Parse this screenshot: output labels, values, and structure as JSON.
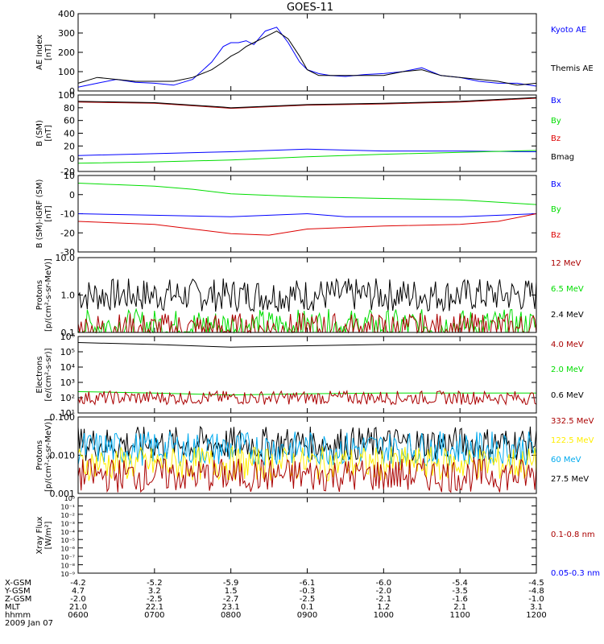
{
  "title": "GOES-11",
  "colors": {
    "black": "#000000",
    "blue": "#0000ff",
    "green": "#00dd00",
    "darkred": "#aa0000",
    "red": "#dd0000",
    "yellow": "#ffee00",
    "cyan": "#00aaee"
  },
  "chart_data": [
    {
      "type": "line",
      "ylabel": "AE Index\n[nT]",
      "ylim": [
        0,
        400
      ],
      "yscale": "linear",
      "yticks": [
        "0",
        "100",
        "200",
        "300",
        "400"
      ],
      "legend": [
        {
          "name": "Kyoto AE",
          "color": "blue"
        },
        {
          "name": "Themis AE",
          "color": "black"
        }
      ],
      "series": [
        {
          "name": "Kyoto AE",
          "color": "blue",
          "x": [
            6.0,
            6.25,
            6.5,
            6.75,
            7.0,
            7.25,
            7.5,
            7.75,
            7.9,
            8.0,
            8.1,
            8.2,
            8.3,
            8.45,
            8.6,
            8.75,
            8.9,
            9.0,
            9.15,
            9.3,
            9.5,
            9.75,
            10.0,
            10.25,
            10.5,
            10.75,
            11.0,
            11.25,
            11.5,
            11.75,
            12.0
          ],
          "y": [
            20,
            40,
            60,
            45,
            40,
            30,
            60,
            150,
            230,
            250,
            250,
            260,
            240,
            310,
            330,
            250,
            150,
            110,
            90,
            80,
            75,
            85,
            90,
            100,
            120,
            80,
            70,
            50,
            40,
            40,
            25
          ]
        },
        {
          "name": "Themis AE",
          "color": "black",
          "x": [
            6.0,
            6.25,
            6.5,
            6.75,
            7.0,
            7.25,
            7.5,
            7.75,
            7.9,
            8.0,
            8.1,
            8.2,
            8.3,
            8.45,
            8.6,
            8.75,
            8.9,
            9.0,
            9.15,
            9.3,
            9.5,
            9.75,
            10.0,
            10.25,
            10.5,
            10.75,
            11.0,
            11.25,
            11.5,
            11.75,
            12.0
          ],
          "y": [
            40,
            70,
            60,
            50,
            50,
            50,
            70,
            110,
            150,
            180,
            200,
            230,
            250,
            280,
            310,
            270,
            180,
            110,
            80,
            80,
            80,
            80,
            80,
            100,
            110,
            80,
            70,
            60,
            50,
            30,
            40
          ]
        }
      ]
    },
    {
      "type": "line",
      "ylabel": "B (SM)\n[nT]",
      "ylim": [
        -20,
        100
      ],
      "yscale": "linear",
      "yticks": [
        "-20",
        "0",
        "20",
        "40",
        "60",
        "80",
        "100"
      ],
      "legend": [
        {
          "name": "Bx",
          "color": "blue"
        },
        {
          "name": "By",
          "color": "green"
        },
        {
          "name": "Bz",
          "color": "red"
        },
        {
          "name": "Bmag",
          "color": "black"
        }
      ],
      "series": [
        {
          "name": "Bx",
          "color": "blue",
          "x": [
            6,
            7,
            8,
            9,
            10,
            11,
            12
          ],
          "y": [
            5,
            8,
            11,
            15,
            12,
            12,
            11
          ]
        },
        {
          "name": "By",
          "color": "green",
          "x": [
            6,
            7,
            8,
            9,
            10,
            11,
            12
          ],
          "y": [
            -7,
            -5,
            -2,
            3,
            7,
            10,
            13
          ]
        },
        {
          "name": "Bz",
          "color": "darkred",
          "x": [
            6,
            7,
            7.9,
            8,
            9,
            10,
            11,
            12
          ],
          "y": [
            89,
            87,
            80,
            79,
            84,
            86,
            89,
            95
          ]
        },
        {
          "name": "Bmag",
          "color": "black",
          "x": [
            6,
            7,
            7.9,
            8,
            9,
            10,
            11,
            12
          ],
          "y": [
            90,
            88,
            81,
            80,
            85,
            87,
            90,
            96
          ]
        }
      ]
    },
    {
      "type": "line",
      "ylabel": "B (SM)-IGRF (SM)\n[nT]",
      "ylim": [
        -35,
        15
      ],
      "yscale": "linear",
      "yticks": [
        "-30",
        "-20",
        "-10",
        "0",
        "10"
      ],
      "legend": [
        {
          "name": "Bx",
          "color": "blue"
        },
        {
          "name": "By",
          "color": "green"
        },
        {
          "name": "Bz",
          "color": "red"
        }
      ],
      "series": [
        {
          "name": "Bx",
          "color": "blue",
          "x": [
            6,
            7,
            8,
            8.5,
            9,
            9.5,
            10,
            11,
            12
          ],
          "y": [
            -10,
            -11,
            -12,
            -11,
            -10,
            -12,
            -12,
            -12,
            -10
          ]
        },
        {
          "name": "By",
          "color": "green",
          "x": [
            6,
            6.5,
            7,
            7.5,
            8,
            9,
            10,
            11,
            12
          ],
          "y": [
            10,
            9,
            8,
            6,
            3,
            1,
            0,
            -1,
            -4
          ]
        },
        {
          "name": "Bz",
          "color": "red",
          "x": [
            6,
            7,
            7.5,
            8,
            8.5,
            9,
            10,
            11,
            11.5,
            12
          ],
          "y": [
            -15,
            -17,
            -20,
            -23,
            -24,
            -20,
            -18,
            -17,
            -15,
            -10
          ]
        }
      ]
    },
    {
      "type": "line",
      "ylabel": "Protons\n[p/(cm²-s-sr-MeV)]",
      "ylim": [
        0.1,
        10.0
      ],
      "yscale": "log",
      "yticks": [
        "0.1",
        "1.0",
        "10.0"
      ],
      "legend": [
        {
          "name": "12 MeV",
          "color": "darkred"
        },
        {
          "name": "6.5 MeV",
          "color": "green"
        },
        {
          "name": "2.4 MeV",
          "color": "black"
        }
      ],
      "series": [
        {
          "name": "2.4 MeV",
          "color": "black",
          "noisy": true,
          "x": [
            6,
            12
          ],
          "y": [
            1.0,
            1.5
          ]
        },
        {
          "name": "6.5 MeV",
          "color": "green",
          "noisy": true,
          "x": [
            6,
            12
          ],
          "y": [
            0.15,
            0.15
          ]
        },
        {
          "name": "12 MeV",
          "color": "darkred",
          "noisy": true,
          "x": [
            6,
            12
          ],
          "y": [
            0.12,
            0.12
          ]
        }
      ]
    },
    {
      "type": "line",
      "ylabel": "Electrons\n[e/(cm²-s-sr)]",
      "ylim": [
        10,
        1000000
      ],
      "yscale": "log",
      "yticks": [
        "10¹",
        "10²",
        "10³",
        "10⁴",
        "10⁵",
        "10⁶"
      ],
      "legend": [
        {
          "name": "4.0 MeV",
          "color": "darkred"
        },
        {
          "name": "2.0 MeV",
          "color": "green"
        },
        {
          "name": "0.6 MeV",
          "color": "black"
        }
      ],
      "series": [
        {
          "name": "0.6 MeV",
          "color": "black",
          "x": [
            6,
            7,
            8,
            9,
            10,
            11,
            12
          ],
          "y": [
            400000,
            300000,
            200000,
            250000,
            300000,
            300000,
            300000
          ]
        },
        {
          "name": "2.0 MeV",
          "color": "green",
          "x": [
            6,
            7,
            8,
            9,
            10,
            11,
            12
          ],
          "y": [
            250,
            200,
            150,
            180,
            200,
            200,
            200
          ]
        },
        {
          "name": "4.0 MeV",
          "color": "darkred",
          "noisy": true,
          "x": [
            6,
            12
          ],
          "y": [
            100,
            100
          ]
        }
      ]
    },
    {
      "type": "line",
      "ylabel": "Protons\n[p/(cm²-s-sr-MeV)]",
      "ylim": [
        0.001,
        0.1
      ],
      "yscale": "log",
      "yticks": [
        "0.001",
        "0.010",
        "0.100"
      ],
      "legend": [
        {
          "name": "332.5 MeV",
          "color": "darkred"
        },
        {
          "name": "122.5 MeV",
          "color": "yellow"
        },
        {
          "name": "60 MeV",
          "color": "cyan"
        },
        {
          "name": "27.5 MeV",
          "color": "black"
        }
      ],
      "series": [
        {
          "name": "27.5 MeV",
          "color": "black",
          "noisy": true,
          "x": [
            6,
            12
          ],
          "y": [
            0.02,
            0.02
          ]
        },
        {
          "name": "60 MeV",
          "color": "cyan",
          "noisy": true,
          "x": [
            6,
            12
          ],
          "y": [
            0.015,
            0.015
          ]
        },
        {
          "name": "122.5 MeV",
          "color": "yellow",
          "noisy": true,
          "x": [
            6,
            12
          ],
          "y": [
            0.006,
            0.006
          ]
        },
        {
          "name": "332.5 MeV",
          "color": "darkred",
          "noisy": true,
          "x": [
            6,
            12
          ],
          "y": [
            0.003,
            0.003
          ]
        }
      ]
    },
    {
      "type": "line",
      "ylabel": "Xray Flux\n[W/m²]",
      "ylim": [
        1e-09,
        1
      ],
      "yscale": "log",
      "yticks": [
        "10⁻⁹",
        "10⁻⁸",
        "10⁻⁷",
        "10⁻⁶",
        "10⁻⁵",
        "10⁻⁴",
        "10⁻³",
        "10⁻²",
        "10⁻¹",
        "10⁰"
      ],
      "legend": [
        {
          "name": "0.1-0.8 nm",
          "color": "darkred"
        },
        {
          "name": "0.05-0.3 nm",
          "color": "blue"
        }
      ],
      "series": []
    }
  ],
  "x_axis": {
    "xlim": [
      6,
      12
    ],
    "ticks": [
      6,
      7,
      8,
      9,
      10,
      11,
      12
    ],
    "rows": [
      {
        "label": "X-GSM",
        "values": [
          "-4.2",
          "-5.2",
          "-5.9",
          "-6.1",
          "-6.0",
          "-5.4",
          "-4.5"
        ]
      },
      {
        "label": "Y-GSM",
        "values": [
          "4.7",
          "3.2",
          "1.5",
          "-0.3",
          "-2.0",
          "-3.5",
          "-4.8"
        ]
      },
      {
        "label": "Z-GSM",
        "values": [
          "-2.0",
          "-2.5",
          "-2.7",
          "-2.5",
          "-2.1",
          "-1.6",
          "-1.0"
        ]
      },
      {
        "label": "MLT",
        "values": [
          "21.0",
          "22.1",
          "23.1",
          "0.1",
          "1.2",
          "2.1",
          "3.1"
        ]
      },
      {
        "label": "hhmm",
        "values": [
          "0600",
          "0700",
          "0800",
          "0900",
          "1000",
          "1100",
          "1200"
        ]
      }
    ],
    "date": "2009 Jan 07"
  }
}
